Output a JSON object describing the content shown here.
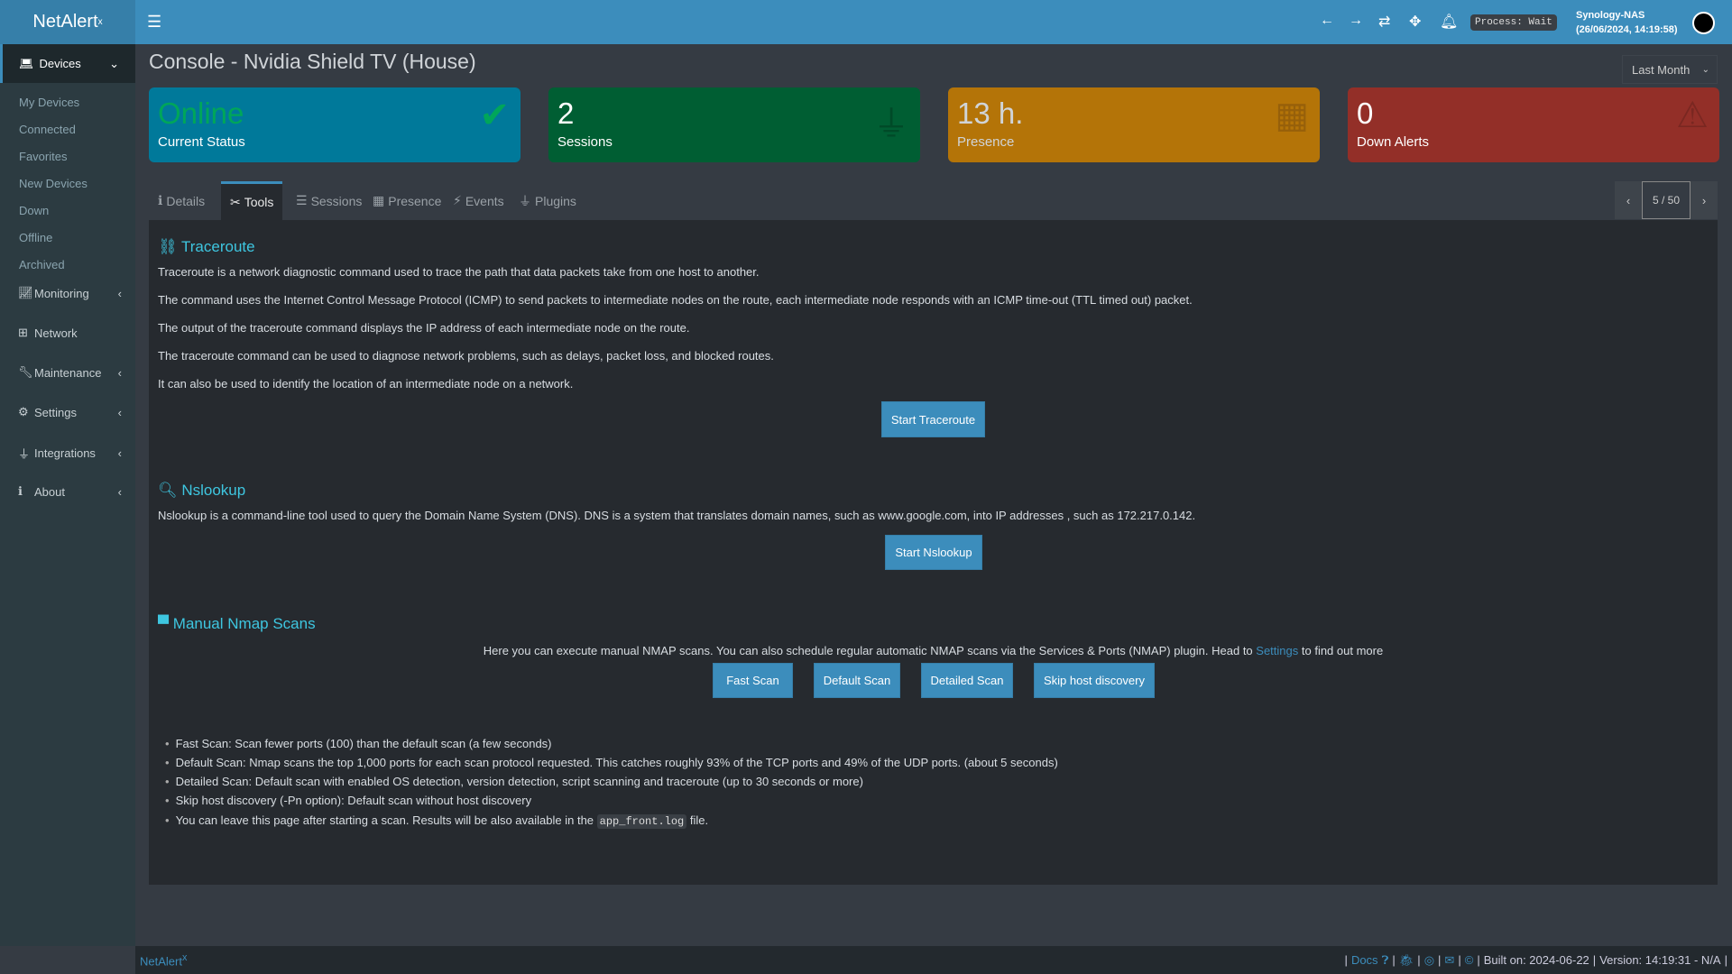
{
  "app": {
    "logo_main": "NetAlert",
    "logo_sup": "x"
  },
  "header": {
    "process": "Process: Wait",
    "host": "Synology-NAS",
    "datetime": "(26/06/2024, 14:19:58)"
  },
  "sidebar": {
    "devices": "Devices",
    "sub": [
      "My Devices",
      "Connected",
      "Favorites",
      "New Devices",
      "Down",
      "Offline",
      "Archived"
    ],
    "items": [
      {
        "label": "Monitoring",
        "icon": "chart-icon",
        "chev": true
      },
      {
        "label": "Network",
        "icon": "network-icon",
        "chev": false
      },
      {
        "label": "Maintenance",
        "icon": "wrench-icon",
        "chev": true
      },
      {
        "label": "Settings",
        "icon": "gear-icon",
        "chev": true
      },
      {
        "label": "Integrations",
        "icon": "plug-icon",
        "chev": true
      },
      {
        "label": "About",
        "icon": "info-icon",
        "chev": true
      }
    ]
  },
  "page": {
    "title": "Console - Nvidia Shield TV (House)",
    "range": "Last Month"
  },
  "cards": [
    {
      "value": "Online",
      "label": "Current Status",
      "color": "#00799a"
    },
    {
      "value": "2",
      "label": "Sessions",
      "color": "#005e33"
    },
    {
      "value": "13 h.",
      "label": "Presence",
      "color": "#b47408"
    },
    {
      "value": "0",
      "label": "Down Alerts",
      "color": "#932f28"
    }
  ],
  "tabs": [
    "Details",
    "Tools",
    "Sessions",
    "Presence",
    "Events",
    "Plugins"
  ],
  "pager": {
    "text": "5 / 50"
  },
  "traceroute": {
    "title": "Traceroute",
    "lines": [
      "Traceroute is a network diagnostic command used to trace the path that data packets take from one host to another.",
      "The command uses the Internet Control Message Protocol (ICMP) to send packets to intermediate nodes on the route, each intermediate node responds with an ICMP time-out (TTL timed out) packet.",
      "The output of the traceroute command displays the IP address of each intermediate node on the route.",
      "The traceroute command can be used to diagnose network problems, such as delays, packet loss, and blocked routes.",
      "It can also be used to identify the location of an intermediate node on a network."
    ],
    "button": "Start Traceroute"
  },
  "nslookup": {
    "title": "Nslookup",
    "text": "Nslookup is a command-line tool used to query the Domain Name System (DNS). DNS is a system that translates domain names, such as www.google.com, into IP addresses , such as 172.217.0.142.",
    "button": "Start Nslookup"
  },
  "nmap": {
    "title": "Manual Nmap Scans",
    "intro": "Here you can execute manual NMAP scans. You can also schedule regular automatic NMAP scans via the Services & Ports (NMAP) plugin. Head to ",
    "intro_link": "Settings",
    "intro_end": " to find out more",
    "buttons": [
      "Fast Scan",
      "Default Scan",
      "Detailed Scan",
      "Skip host discovery"
    ],
    "bullets": [
      "Fast Scan: Scan fewer ports (100) than the default scan (a few seconds)",
      "Default Scan: Nmap scans the top 1,000 ports for each scan protocol requested. This catches roughly 93% of the TCP ports and 49% of the UDP ports. (about 5 seconds)",
      "Detailed Scan: Default scan with enabled OS detection, version detection, script scanning and traceroute (up to 30 seconds or more)",
      "Skip host discovery (-Pn option): Default scan without host discovery"
    ],
    "note_pre": "You can leave this page after starting a scan. Results will be also available in the ",
    "note_code": "app_front.log",
    "note_post": " file."
  },
  "footer": {
    "brand": "NetAlert",
    "brand_sup": "x",
    "docs": "Docs",
    "built": "Built on: 2024-06-22",
    "version": "Version: 14:19:31 - N/A"
  }
}
